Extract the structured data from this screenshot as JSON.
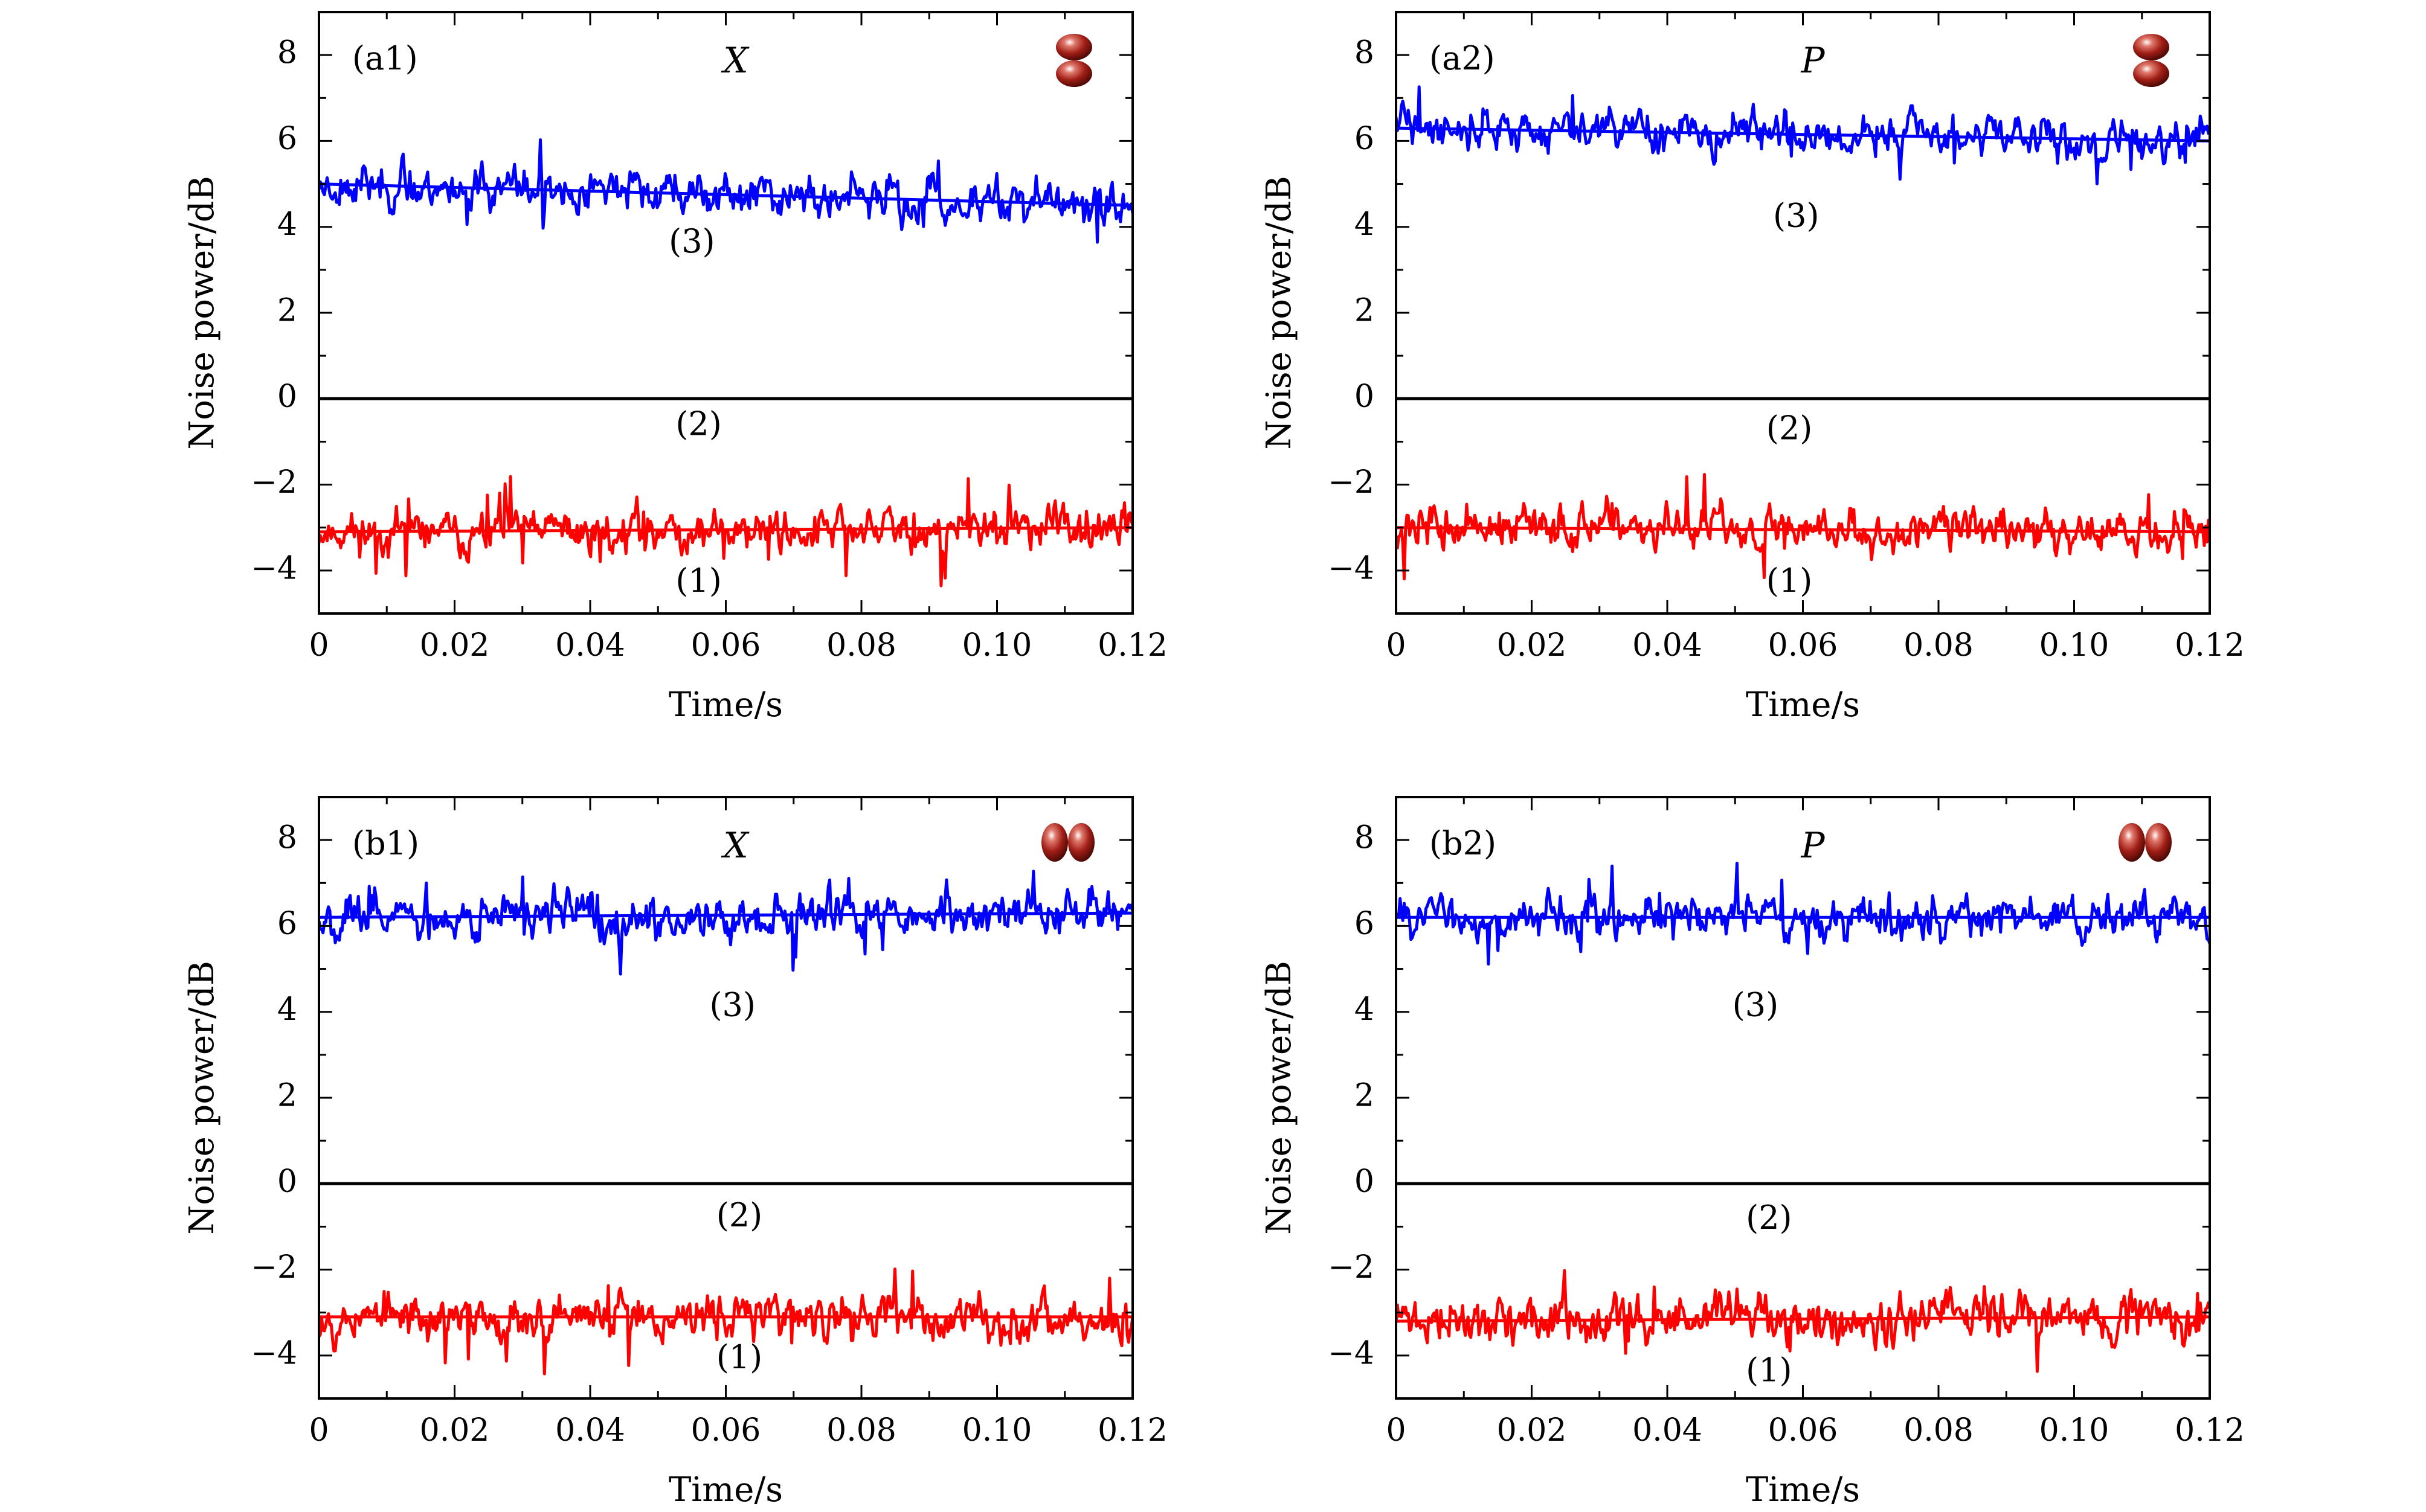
{
  "chart_data": [
    {
      "type": "line",
      "panel_label": "(a1)",
      "quadrature": "X",
      "xlabel": "Time/s",
      "ylabel": "Noise power/dB",
      "xlim": [
        0,
        0.12
      ],
      "ylim": [
        -5,
        9
      ],
      "xticks": [
        0,
        0.02,
        0.04,
        0.06,
        0.08,
        0.1,
        0.12
      ],
      "xtick_labels": [
        "0",
        "0.02",
        "0.04",
        "0.06",
        "0.08",
        "0.10",
        "0.12"
      ],
      "yticks": [
        -4,
        -2,
        0,
        2,
        4,
        6,
        8
      ],
      "ytick_labels": [
        "−4",
        "−2",
        "0",
        "2",
        "4",
        "6",
        "8"
      ],
      "icon_orientation": "vertical",
      "series": [
        {
          "name": "(1)",
          "color": "#ff0000",
          "start": -3.1,
          "end": -3.0,
          "amplitude": 0.38,
          "seed": 11,
          "label_at": [
            0.056,
            -4.3
          ]
        },
        {
          "name": "(2)",
          "color": "#000000",
          "start": 0.0,
          "end": 0.0,
          "amplitude": 0,
          "seed": 0,
          "label_at": [
            0.056,
            -0.65
          ]
        },
        {
          "name": "(3)",
          "color": "#0000ff",
          "start": 5.0,
          "end": 4.5,
          "amplitude": 0.38,
          "seed": 23,
          "label_at": [
            0.055,
            3.6
          ]
        }
      ]
    },
    {
      "type": "line",
      "panel_label": "(a2)",
      "quadrature": "P",
      "xlabel": "Time/s",
      "ylabel": "Noise power/dB",
      "xlim": [
        0,
        0.12
      ],
      "ylim": [
        -5,
        9
      ],
      "xticks": [
        0,
        0.02,
        0.04,
        0.06,
        0.08,
        0.1,
        0.12
      ],
      "xtick_labels": [
        "0",
        "0.02",
        "0.04",
        "0.06",
        "0.08",
        "0.10",
        "0.12"
      ],
      "yticks": [
        -4,
        -2,
        0,
        2,
        4,
        6,
        8
      ],
      "ytick_labels": [
        "−4",
        "−2",
        "0",
        "2",
        "4",
        "6",
        "8"
      ],
      "icon_orientation": "vertical",
      "series": [
        {
          "name": "(1)",
          "color": "#ff0000",
          "start": -3.0,
          "end": -3.1,
          "amplitude": 0.38,
          "seed": 37,
          "label_at": [
            0.058,
            -4.3
          ]
        },
        {
          "name": "(2)",
          "color": "#000000",
          "start": 0.0,
          "end": 0.0,
          "amplitude": 0,
          "seed": 0,
          "label_at": [
            0.058,
            -0.75
          ]
        },
        {
          "name": "(3)",
          "color": "#0000ff",
          "start": 6.3,
          "end": 6.0,
          "amplitude": 0.36,
          "seed": 41,
          "label_at": [
            0.059,
            4.2
          ]
        }
      ]
    },
    {
      "type": "line",
      "panel_label": "(b1)",
      "quadrature": "X",
      "xlabel": "Time/s",
      "ylabel": "Noise power/dB",
      "xlim": [
        0,
        0.12
      ],
      "ylim": [
        -5,
        9
      ],
      "xticks": [
        0,
        0.02,
        0.04,
        0.06,
        0.08,
        0.1,
        0.12
      ],
      "xtick_labels": [
        "0",
        "0.02",
        "0.04",
        "0.06",
        "0.08",
        "0.10",
        "0.12"
      ],
      "yticks": [
        -4,
        -2,
        0,
        2,
        4,
        6,
        8
      ],
      "ytick_labels": [
        "−4",
        "−2",
        "0",
        "2",
        "4",
        "6",
        "8"
      ],
      "icon_orientation": "horizontal",
      "series": [
        {
          "name": "(1)",
          "color": "#ff0000",
          "start": -3.1,
          "end": -3.1,
          "amplitude": 0.4,
          "seed": 53,
          "label_at": [
            0.062,
            -4.1
          ]
        },
        {
          "name": "(2)",
          "color": "#000000",
          "start": 0.0,
          "end": 0.0,
          "amplitude": 0,
          "seed": 0,
          "label_at": [
            0.062,
            -0.8
          ]
        },
        {
          "name": "(3)",
          "color": "#0000ff",
          "start": 6.2,
          "end": 6.3,
          "amplitude": 0.4,
          "seed": 67,
          "label_at": [
            0.061,
            4.1
          ]
        }
      ]
    },
    {
      "type": "line",
      "panel_label": "(b2)",
      "quadrature": "P",
      "xlabel": "Time/s",
      "ylabel": "Noise power/dB",
      "xlim": [
        0,
        0.12
      ],
      "ylim": [
        -5,
        9
      ],
      "xticks": [
        0,
        0.02,
        0.04,
        0.06,
        0.08,
        0.1,
        0.12
      ],
      "xtick_labels": [
        "0",
        "0.02",
        "0.04",
        "0.06",
        "0.08",
        "0.10",
        "0.12"
      ],
      "yticks": [
        -4,
        -2,
        0,
        2,
        4,
        6,
        8
      ],
      "ytick_labels": [
        "−4",
        "−2",
        "0",
        "2",
        "4",
        "6",
        "8"
      ],
      "icon_orientation": "horizontal",
      "series": [
        {
          "name": "(1)",
          "color": "#ff0000",
          "start": -3.2,
          "end": -3.1,
          "amplitude": 0.42,
          "seed": 71,
          "label_at": [
            0.055,
            -4.4
          ]
        },
        {
          "name": "(2)",
          "color": "#000000",
          "start": 0.0,
          "end": 0.0,
          "amplitude": 0,
          "seed": 0,
          "label_at": [
            0.055,
            -0.85
          ]
        },
        {
          "name": "(3)",
          "color": "#0000ff",
          "start": 6.2,
          "end": 6.2,
          "amplitude": 0.36,
          "seed": 83,
          "label_at": [
            0.053,
            4.1
          ]
        }
      ]
    }
  ]
}
